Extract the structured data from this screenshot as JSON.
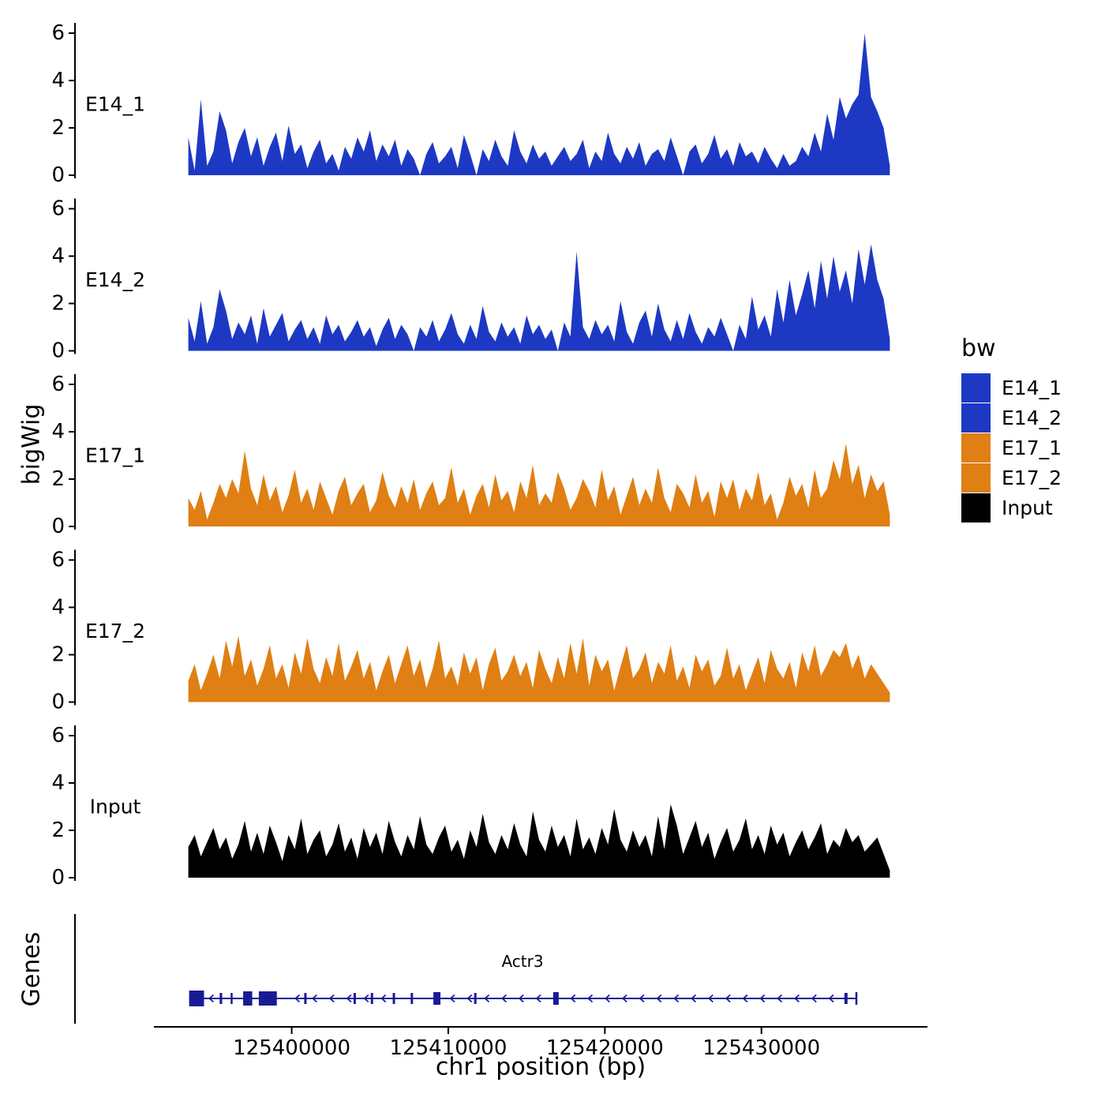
{
  "figure": {
    "y_axis_title": "bigWig",
    "x_axis_title": "chr1 position (bp)",
    "genes_panel_title": "Genes"
  },
  "colors": {
    "blue": "#1d39c4",
    "orange": "#e07f13",
    "black": "#000000",
    "gene": "#1a1a96",
    "axis": "#000000"
  },
  "legend": {
    "title": "bw",
    "position": "right",
    "items": [
      {
        "label": "E14_1",
        "color": "#1d39c4"
      },
      {
        "label": "E14_2",
        "color": "#1d39c4"
      },
      {
        "label": "E17_1",
        "color": "#e07f13"
      },
      {
        "label": "E17_2",
        "color": "#e07f13"
      },
      {
        "label": "Input",
        "color": "#000000"
      }
    ]
  },
  "chart_data": {
    "type": "area",
    "title": "",
    "xlabel": "chr1 position (bp)",
    "ylabel": "bigWig",
    "grid": false,
    "legend_position": "right",
    "x_domain": [
      125391200,
      125440600
    ],
    "x_ticks": [
      125400000,
      125410000,
      125420000,
      125430000
    ],
    "y_ticks": [
      0,
      2,
      4,
      6
    ],
    "ylim": [
      0,
      6.4
    ],
    "x_start": 125393400,
    "x_step": 400,
    "series": [
      {
        "name": "E14_1",
        "color": "#1d39c4",
        "values": [
          1.6,
          0.2,
          3.2,
          0.4,
          1.0,
          2.7,
          1.9,
          0.5,
          1.4,
          2.0,
          0.8,
          1.6,
          0.4,
          1.2,
          1.8,
          0.6,
          2.1,
          0.9,
          1.3,
          0.3,
          1.0,
          1.5,
          0.5,
          0.9,
          0.2,
          1.2,
          0.7,
          1.6,
          1.0,
          1.9,
          0.6,
          1.3,
          0.8,
          1.5,
          0.4,
          1.1,
          0.7,
          0,
          0.9,
          1.4,
          0.5,
          0.8,
          1.2,
          0.3,
          1.7,
          0.9,
          0,
          1.1,
          0.6,
          1.5,
          0.8,
          0.4,
          1.9,
          1.0,
          0.5,
          1.3,
          0.7,
          1.0,
          0.4,
          0.8,
          1.2,
          0.6,
          0.9,
          1.5,
          0.3,
          1.0,
          0.6,
          1.8,
          0.9,
          0.5,
          1.2,
          0.7,
          1.4,
          0.4,
          0.9,
          1.1,
          0.6,
          1.6,
          0.8,
          0,
          1.0,
          1.3,
          0.5,
          0.9,
          1.7,
          0.7,
          1.1,
          0.4,
          1.4,
          0.8,
          1.0,
          0.5,
          1.2,
          0.7,
          0.3,
          0.9,
          0.4,
          0.6,
          1.2,
          0.8,
          1.8,
          1.0,
          2.6,
          1.5,
          3.3,
          2.4,
          3.0,
          3.4,
          6.0,
          3.3,
          2.7,
          2.0,
          0.4
        ]
      },
      {
        "name": "E14_2",
        "color": "#1d39c4",
        "values": [
          1.4,
          0.4,
          2.1,
          0.3,
          1.0,
          2.6,
          1.7,
          0.5,
          1.2,
          0.7,
          1.5,
          0.3,
          1.8,
          0.6,
          1.1,
          1.6,
          0.4,
          0.9,
          1.3,
          0.5,
          1.0,
          0.3,
          1.5,
          0.7,
          1.1,
          0.4,
          0.8,
          1.3,
          0.6,
          1.0,
          0.2,
          0.9,
          1.4,
          0.5,
          1.1,
          0.7,
          0,
          1.0,
          0.6,
          1.3,
          0.4,
          0.9,
          1.6,
          0.7,
          0.3,
          1.1,
          0.5,
          1.9,
          0.8,
          0.4,
          1.2,
          0.6,
          1.0,
          0.3,
          1.5,
          0.7,
          1.1,
          0.5,
          0.9,
          0,
          1.2,
          0.6,
          4.2,
          1.0,
          0.5,
          1.3,
          0.7,
          1.1,
          0.4,
          2.1,
          0.8,
          0.3,
          1.2,
          1.7,
          0.6,
          2.0,
          0.9,
          0.4,
          1.3,
          0.5,
          1.6,
          0.8,
          0.3,
          1.0,
          0.6,
          1.4,
          0.7,
          0,
          1.1,
          0.5,
          2.3,
          0.9,
          1.5,
          0.6,
          2.6,
          1.2,
          3.0,
          1.5,
          2.4,
          3.4,
          1.8,
          3.8,
          2.2,
          4.0,
          2.5,
          3.4,
          2.0,
          4.3,
          2.8,
          4.5,
          3.0,
          2.2,
          0.5
        ]
      },
      {
        "name": "E17_1",
        "color": "#e07f13",
        "values": [
          1.2,
          0.7,
          1.5,
          0.3,
          1.0,
          1.8,
          1.2,
          2.0,
          1.4,
          3.2,
          1.6,
          0.9,
          2.2,
          1.1,
          1.7,
          0.6,
          1.3,
          2.4,
          1.0,
          1.6,
          0.7,
          1.9,
          1.2,
          0.5,
          1.5,
          2.1,
          0.9,
          1.4,
          1.8,
          0.6,
          1.1,
          2.3,
          1.3,
          0.8,
          1.7,
          1.0,
          2.0,
          0.7,
          1.4,
          1.9,
          0.9,
          1.2,
          2.5,
          1.0,
          1.6,
          0.5,
          1.3,
          1.8,
          0.8,
          2.2,
          1.1,
          1.5,
          0.6,
          1.9,
          1.2,
          2.6,
          0.9,
          1.4,
          1.0,
          2.3,
          1.6,
          0.7,
          1.2,
          2.0,
          1.5,
          0.8,
          2.4,
          1.1,
          1.7,
          0.5,
          1.3,
          2.1,
          0.9,
          1.6,
          1.0,
          2.5,
          1.2,
          0.6,
          1.8,
          1.4,
          0.8,
          2.2,
          1.0,
          1.5,
          0.4,
          1.9,
          1.2,
          2.0,
          0.7,
          1.6,
          1.1,
          2.3,
          0.9,
          1.4,
          0.3,
          1.0,
          2.1,
          1.3,
          1.8,
          0.8,
          2.4,
          1.2,
          1.6,
          2.8,
          2.0,
          3.5,
          1.8,
          2.6,
          1.2,
          2.2,
          1.5,
          1.9,
          0.5
        ]
      },
      {
        "name": "E17_2",
        "color": "#e07f13",
        "values": [
          0.9,
          1.6,
          0.5,
          1.2,
          2.0,
          1.0,
          2.6,
          1.5,
          2.8,
          1.1,
          1.8,
          0.7,
          1.4,
          2.4,
          1.0,
          1.6,
          0.6,
          2.1,
          1.2,
          2.7,
          1.4,
          0.8,
          1.9,
          1.1,
          2.5,
          0.9,
          1.5,
          2.2,
          1.0,
          1.7,
          0.5,
          1.3,
          2.0,
          0.8,
          1.6,
          2.4,
          1.1,
          1.8,
          0.6,
          1.4,
          2.6,
          1.0,
          1.5,
          0.7,
          2.1,
          1.2,
          1.9,
          0.5,
          1.6,
          2.3,
          0.9,
          1.3,
          2.0,
          1.1,
          1.7,
          0.6,
          2.2,
          1.4,
          0.8,
          1.9,
          1.0,
          2.5,
          1.2,
          2.7,
          0.7,
          2.0,
          1.3,
          1.8,
          0.5,
          1.5,
          2.4,
          1.0,
          1.4,
          2.1,
          0.8,
          1.7,
          1.2,
          2.4,
          0.9,
          1.5,
          0.6,
          2.0,
          1.3,
          1.8,
          0.7,
          1.1,
          2.3,
          1.0,
          1.6,
          0.5,
          1.2,
          1.9,
          0.8,
          2.2,
          1.4,
          1.0,
          1.7,
          0.6,
          2.1,
          1.3,
          2.4,
          1.1,
          1.6,
          2.2,
          1.9,
          2.5,
          1.4,
          2.0,
          1.0,
          1.6,
          1.2,
          0.8,
          0.4
        ]
      },
      {
        "name": "Input",
        "color": "#000000",
        "values": [
          1.3,
          1.8,
          0.9,
          1.5,
          2.1,
          1.2,
          1.7,
          0.8,
          1.4,
          2.4,
          1.1,
          1.9,
          1.0,
          2.2,
          1.5,
          0.7,
          1.8,
          1.2,
          2.5,
          1.0,
          1.6,
          2.0,
          0.9,
          1.4,
          2.3,
          1.1,
          1.7,
          0.8,
          2.1,
          1.3,
          1.9,
          1.0,
          2.4,
          1.5,
          0.9,
          1.8,
          1.2,
          2.6,
          1.4,
          1.0,
          1.7,
          2.2,
          1.1,
          1.6,
          0.8,
          2.0,
          1.3,
          2.7,
          1.5,
          1.0,
          1.8,
          1.2,
          2.3,
          1.4,
          0.9,
          2.8,
          1.6,
          1.1,
          2.2,
          1.3,
          1.8,
          0.9,
          2.5,
          1.2,
          1.7,
          1.0,
          2.1,
          1.4,
          2.9,
          1.6,
          1.1,
          2.0,
          1.3,
          1.8,
          0.9,
          2.6,
          1.2,
          3.1,
          2.2,
          1.0,
          1.7,
          2.4,
          1.3,
          1.9,
          0.8,
          1.5,
          2.1,
          1.1,
          1.6,
          2.5,
          1.2,
          1.8,
          1.0,
          2.2,
          1.4,
          1.9,
          0.9,
          1.5,
          2.0,
          1.2,
          1.7,
          2.3,
          1.0,
          1.6,
          1.3,
          2.1,
          1.5,
          1.8,
          1.1,
          1.4,
          1.7,
          1.0,
          0.3
        ]
      }
    ],
    "gene_track": {
      "gene": "Actr3",
      "strand": "-",
      "start": 125393450,
      "end": 125436100,
      "exons": [
        {
          "start": 125393450,
          "end": 125394400,
          "h": 20
        },
        {
          "start": 125395400,
          "end": 125395560,
          "h": 14
        },
        {
          "start": 125396100,
          "end": 125396220,
          "h": 14
        },
        {
          "start": 125396900,
          "end": 125397480,
          "h": 18
        },
        {
          "start": 125397900,
          "end": 125399050,
          "h": 18
        },
        {
          "start": 125400800,
          "end": 125400950,
          "h": 14
        },
        {
          "start": 125403950,
          "end": 125404100,
          "h": 14
        },
        {
          "start": 125405050,
          "end": 125405200,
          "h": 14
        },
        {
          "start": 125406450,
          "end": 125406600,
          "h": 14
        },
        {
          "start": 125407600,
          "end": 125407750,
          "h": 14
        },
        {
          "start": 125409050,
          "end": 125409500,
          "h": 16
        },
        {
          "start": 125411650,
          "end": 125411800,
          "h": 14
        },
        {
          "start": 125416700,
          "end": 125417050,
          "h": 16
        },
        {
          "start": 125435300,
          "end": 125435500,
          "h": 14
        },
        {
          "start": 125436000,
          "end": 125436100,
          "h": 16
        }
      ]
    }
  }
}
